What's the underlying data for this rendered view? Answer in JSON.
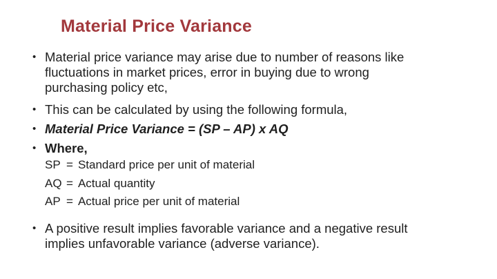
{
  "slide": {
    "title": "Material Price Variance",
    "bullet_glyph": "•",
    "bullets": {
      "reasons_lines": [
        "Material price variance may arise due to number of reasons like",
        "fluctuations in market prices, error in buying due to wrong",
        "purchasing policy etc,"
      ],
      "formula_intro": "This can be calculated by using the following formula,",
      "formula": "Material Price Variance = (SP – AP) x AQ",
      "where_label": "Where,",
      "conclusion_lines": [
        "A positive result implies favorable variance and a negative result",
        "implies unfavorable variance (adverse variance)."
      ]
    },
    "definitions": [
      {
        "abbr": "SP",
        "eq": "=",
        "text": "Standard price per unit of material"
      },
      {
        "abbr": "AQ",
        "eq": "=",
        "text": "Actual quantity"
      },
      {
        "abbr": "AP",
        "eq": "=",
        "text": "Actual price per unit of material"
      }
    ],
    "colors": {
      "title": "#A2383C",
      "body_text": "#1F1F1F",
      "background": "#FFFFFF"
    }
  }
}
